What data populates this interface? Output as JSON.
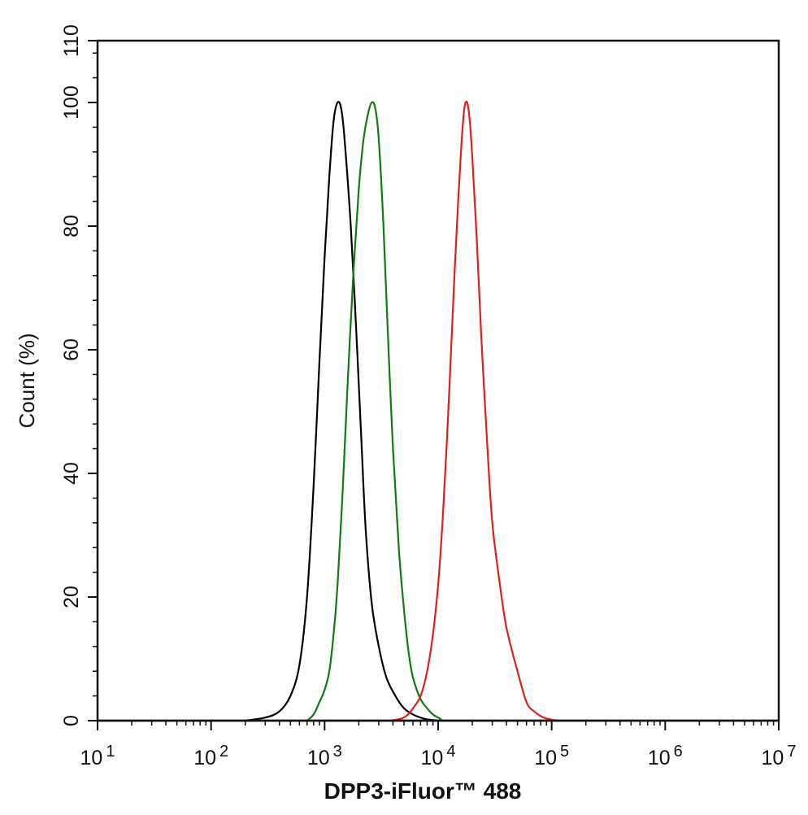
{
  "chart_data": {
    "type": "line",
    "title": "",
    "xlabel": "DPP3-iFluor™ 488",
    "ylabel": "Count  (%)",
    "x_scale": "log",
    "xlim": [
      10,
      10000000
    ],
    "ylim": [
      0,
      110
    ],
    "y_ticks": [
      "0",
      "20",
      "40",
      "60",
      "80",
      "100",
      "110"
    ],
    "x_ticks": [
      {
        "base": "10",
        "exp": "1"
      },
      {
        "base": "10",
        "exp": "2"
      },
      {
        "base": "10",
        "exp": "3"
      },
      {
        "base": "10",
        "exp": "4"
      },
      {
        "base": "10",
        "exp": "5"
      },
      {
        "base": "10",
        "exp": "6"
      },
      {
        "base": "10",
        "exp": "7"
      }
    ],
    "grid": false,
    "legend": "none",
    "series": [
      {
        "color": "#000000",
        "x": [
          200,
          300,
          400,
          500,
          600,
          700,
          800,
          900,
          1000,
          1100,
          1200,
          1300,
          1400,
          1500,
          1700,
          1900,
          2100,
          2300,
          2600,
          3000,
          3500,
          4200,
          5000,
          6000,
          7000,
          8000,
          10000
        ],
        "y": [
          0,
          0.5,
          1.5,
          4,
          9,
          20,
          38,
          58,
          75,
          88,
          97,
          100,
          99,
          94,
          80,
          63,
          46,
          31,
          19,
          12,
          7,
          4,
          2,
          1,
          0.5,
          0.2,
          0
        ]
      },
      {
        "color": "#117a11",
        "x": [
          700,
          800,
          900,
          1000,
          1100,
          1200,
          1300,
          1450,
          1600,
          1800,
          2000,
          2200,
          2400,
          2600,
          2800,
          3000,
          3300,
          3600,
          4000,
          4500,
          5000,
          5500,
          6000,
          7000,
          8000,
          9000,
          10000,
          11000
        ],
        "y": [
          0,
          1,
          3,
          5,
          8,
          14,
          22,
          38,
          55,
          73,
          86,
          94,
          98,
          100,
          99,
          94,
          80,
          63,
          44,
          28,
          18,
          11,
          7,
          3.5,
          2,
          1,
          0.5,
          0
        ]
      },
      {
        "color": "#e01f1f",
        "x": [
          3800,
          5000,
          6000,
          7000,
          8000,
          9000,
          10000,
          11000,
          12000,
          13000,
          14000,
          15000,
          16000,
          17000,
          18000,
          19000,
          20000,
          22000,
          24000,
          27000,
          30000,
          35000,
          40000,
          50000,
          60000,
          70000,
          85000,
          110000
        ],
        "y": [
          0,
          0.5,
          2,
          4,
          8,
          14,
          22,
          33,
          46,
          60,
          73,
          84,
          93,
          99,
          100,
          97,
          91,
          77,
          62,
          45,
          32,
          22,
          15,
          8,
          3,
          1.5,
          0.5,
          0
        ]
      }
    ]
  }
}
